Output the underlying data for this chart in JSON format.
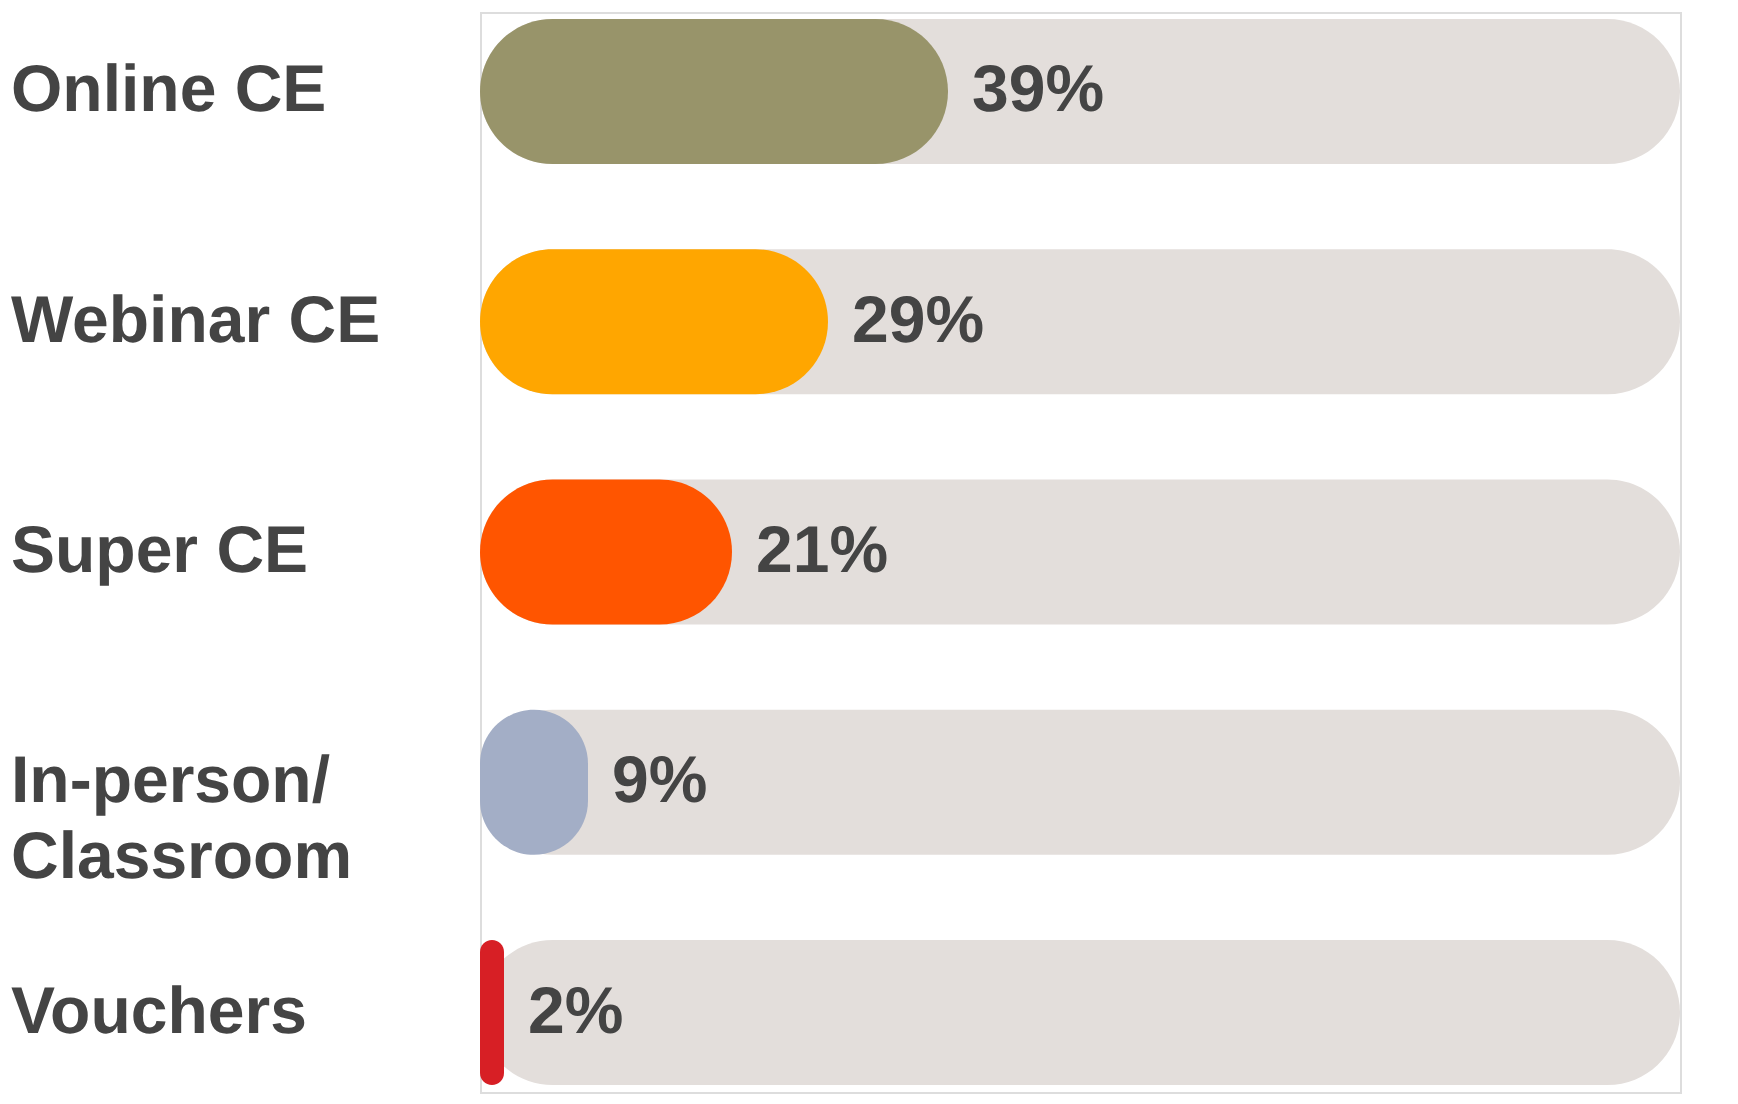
{
  "chart_data": {
    "type": "bar",
    "orientation": "horizontal",
    "categories": [
      "Online CE",
      "Webinar CE",
      "Super CE",
      "In-person/Classroom",
      "Vouchers"
    ],
    "series": [
      {
        "colors": [
          "#98946a",
          "#ffa600",
          "#ff5500",
          "#a3aec6",
          "#d71f25"
        ],
        "values": [
          39,
          29,
          21,
          9,
          2
        ],
        "value_labels": [
          "39%",
          "29%",
          "21%",
          "9%",
          "2%"
        ]
      }
    ],
    "bands": [
      {
        "axis": "x",
        "from": 0,
        "to": 100,
        "color": "#e3dedb"
      }
    ],
    "xlim": [
      0,
      100
    ],
    "tick_labels": "y",
    "grid": false
  }
}
